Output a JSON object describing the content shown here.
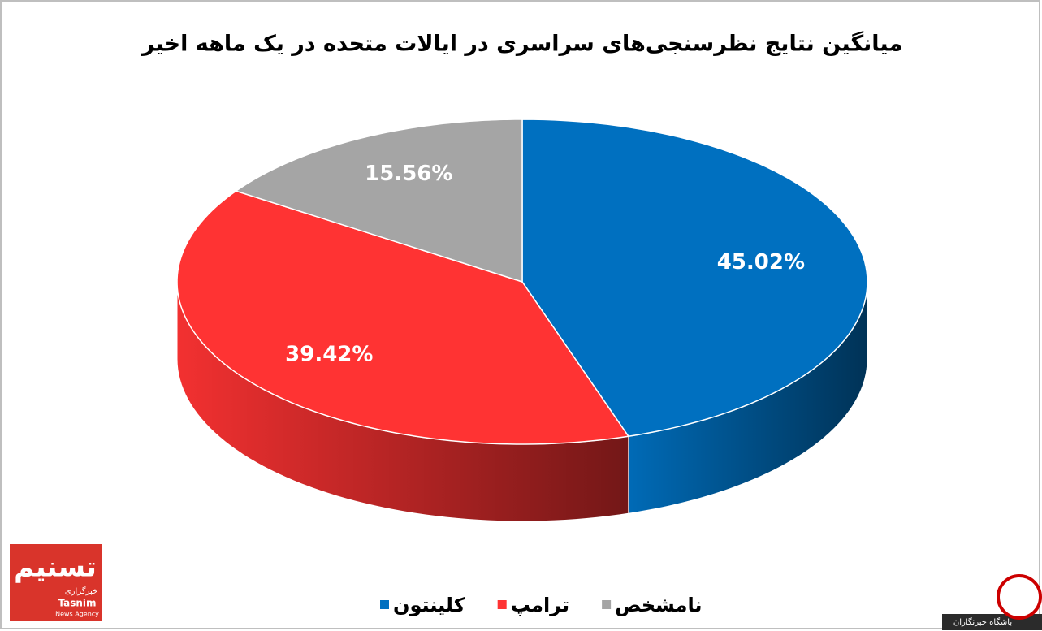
{
  "chart_data": {
    "type": "pie",
    "title": "میانگین نتایج نظرسنجی‌های سراسری در ایالات متحده در یک ماهه اخیر",
    "categories": [
      "کلینتون",
      "ترامپ",
      "نامشخص"
    ],
    "values": [
      45.02,
      39.42,
      15.56
    ],
    "value_labels": [
      "45.02%",
      "39.42%",
      "15.56%"
    ],
    "colors": [
      "#0070c0",
      "#ff3333",
      "#a5a5a5"
    ],
    "legend": "bottom"
  },
  "logos": {
    "tasnim": {
      "mark": "تسنیم",
      "label": "خبرگزاری",
      "name": "Tasnim",
      "subtitle": "News Agency"
    },
    "yjc": "باشگاه خبرنگاران"
  }
}
